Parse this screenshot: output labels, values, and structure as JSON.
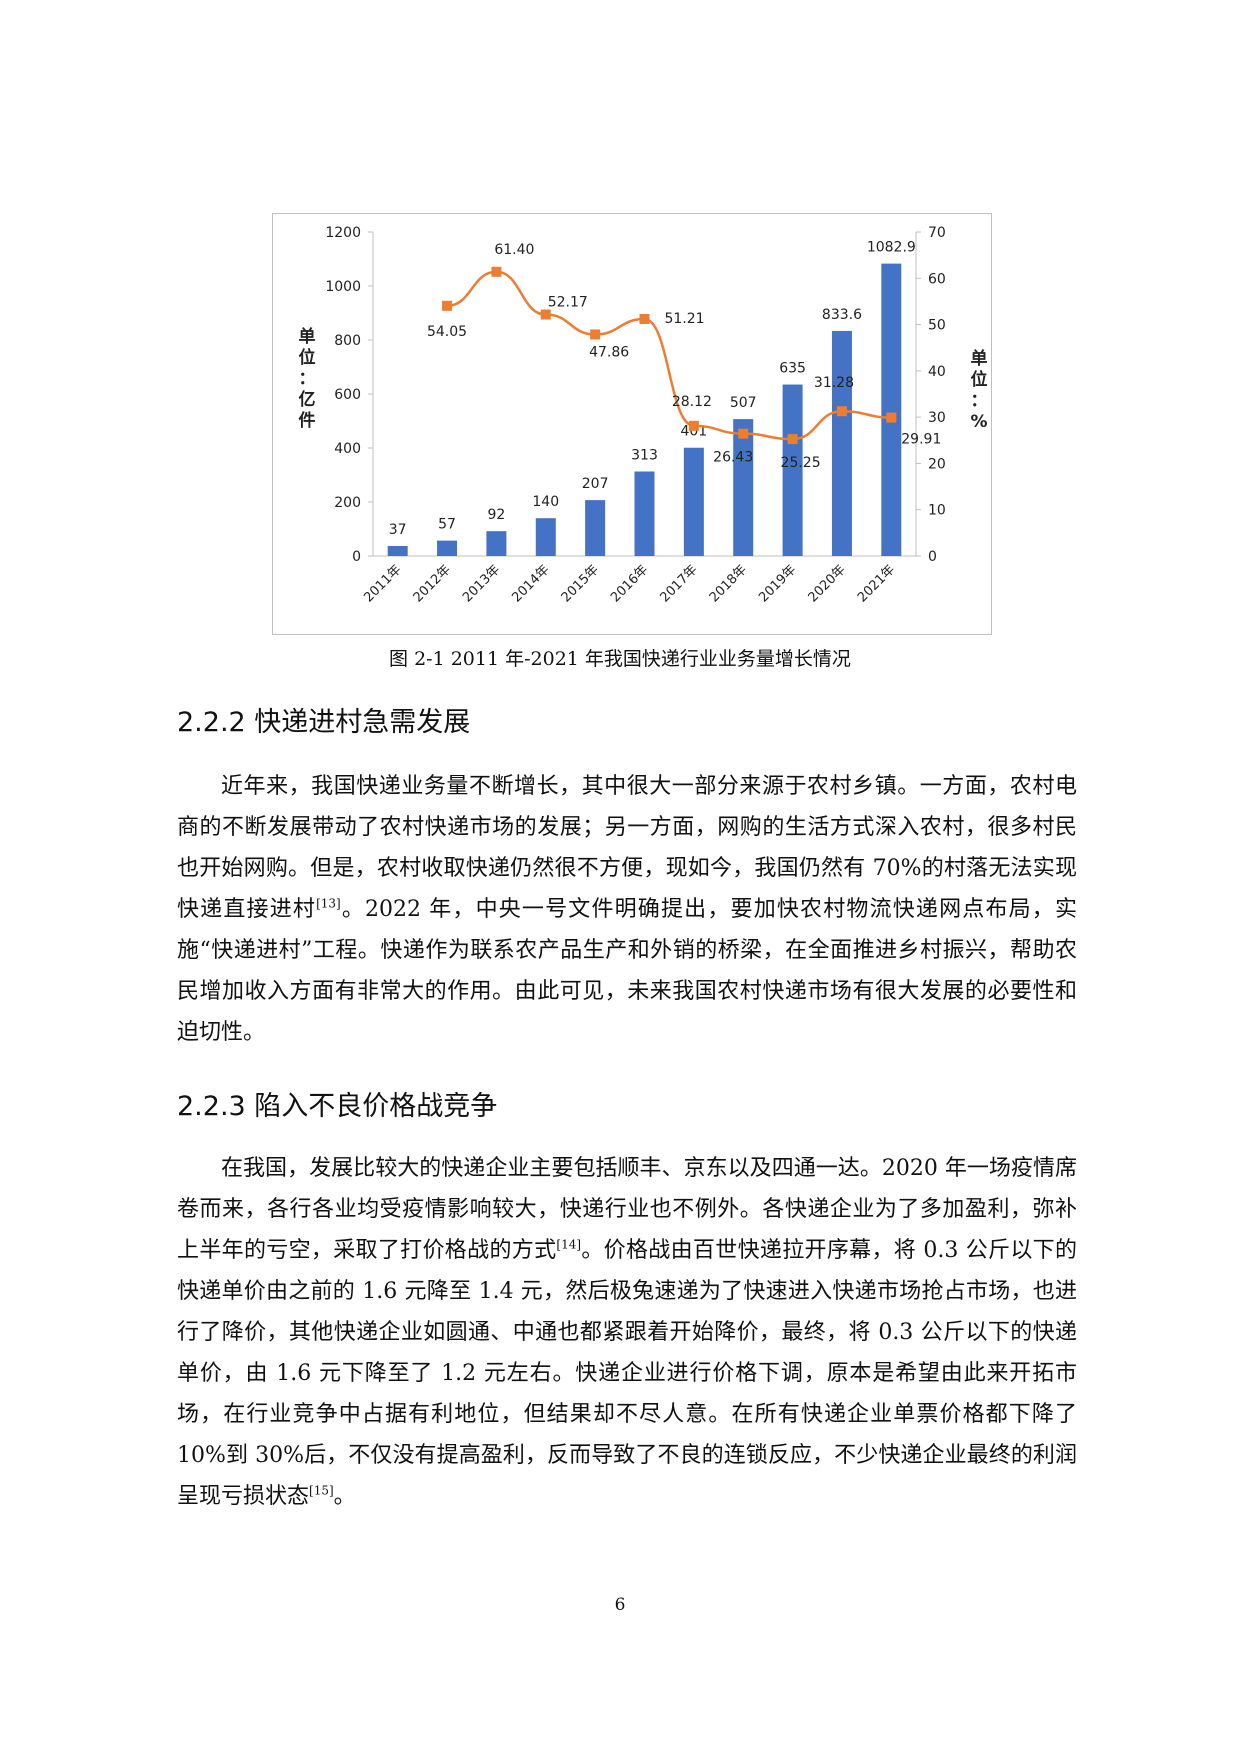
{
  "chart_data": {
    "type": "bar+line",
    "categories": [
      "2011年",
      "2012年",
      "2013年",
      "2014年",
      "2015年",
      "2016年",
      "2017年",
      "2018年",
      "2019年",
      "2020年",
      "2021年"
    ],
    "series": [
      {
        "name": "",
        "type": "bar",
        "axis": "left",
        "values": [
          37,
          57,
          92,
          140,
          207,
          313,
          401,
          507,
          635,
          833.6,
          1082.9
        ],
        "labels": [
          "37",
          "57",
          "92",
          "140",
          "207",
          "313",
          "401",
          "507",
          "635",
          "833.6",
          "1082.9"
        ],
        "color": "#4472C4"
      },
      {
        "name": "",
        "type": "line",
        "axis": "right",
        "values": [
          null,
          54.05,
          61.4,
          52.17,
          47.86,
          51.21,
          28.12,
          26.43,
          25.25,
          31.28,
          29.91
        ],
        "labels": [
          "",
          "54.05",
          "61.40",
          "52.17",
          "47.86",
          "51.21",
          "28.12",
          "26.43",
          "25.25",
          "31.28",
          "29.91"
        ],
        "color": "#ED7D31"
      }
    ],
    "y_left": {
      "label": "单位：亿件",
      "min": 0,
      "max": 1200,
      "ticks": [
        0,
        200,
        400,
        600,
        800,
        1000,
        1200
      ]
    },
    "y_right": {
      "label": "单位：%",
      "min": 0,
      "max": 70,
      "ticks": [
        0,
        10,
        20,
        30,
        40,
        50,
        60,
        70
      ]
    },
    "grid": false,
    "legend": "none"
  },
  "figure_caption": "图 2-1  2011 年-2021 年我国快递行业业务量增长情况",
  "section_222": {
    "heading": "2.2.2 快递进村急需发展",
    "p1_a": "近年来，我国快递业务量不断增长，其中很大一部分来源于农村乡镇。一方面，农村电商的不断发展带动了农村快递市场的发展；另一方面，网购的生活方式深入农村，很多村民也开始网购。但是，农村收取快递仍然很不方便，现如今，我国仍然有 70%的村落无法实现快递直接进村",
    "p1_ref": "[13]",
    "p1_b": "。2022 年，中央一号文件明确提出，要加快农村物流快递网点布局，实施“快递进村”工程。快递作为联系农产品生产和外销的桥梁，在全面推进乡村振兴，帮助农民增加收入方面有非常大的作用。由此可见，未来我国农村快递市场有很大发展的必要性和迫切性。"
  },
  "section_223": {
    "heading": "2.2.3 陷入不良价格战竞争",
    "p2_a": "在我国，发展比较大的快递企业主要包括顺丰、京东以及四通一达。2020 年一场疫情席卷而来，各行各业均受疫情影响较大，快递行业也不例外。各快递企业为了多加盈利，弥补上半年的亏空，采取了打价格战的方式",
    "p2_ref1": "[14]",
    "p2_b": "。价格战由百世快递拉开序幕，将 0.3 公斤以下的快递单价由之前的 1.6 元降至 1.4 元，然后极兔速递为了快速进入快递市场抢占市场，也进行了降价，其他快递企业如圆通、中通也都紧跟着开始降价，最终，将 0.3 公斤以下的快递单价，由 1.6 元下降至了 1.2 元左右。快递企业进行价格下调，原本是希望由此来开拓市场，在行业竞争中占据有利地位，但结果却不尽人意。在所有快递企业单票价格都下降了 10%到 30%后，不仅没有提高盈利，反而导致了不良的连锁反应，不少快递企业最终的利润呈现亏损状态",
    "p2_ref2": "[15]",
    "p2_c": "。"
  },
  "page_number": "6"
}
